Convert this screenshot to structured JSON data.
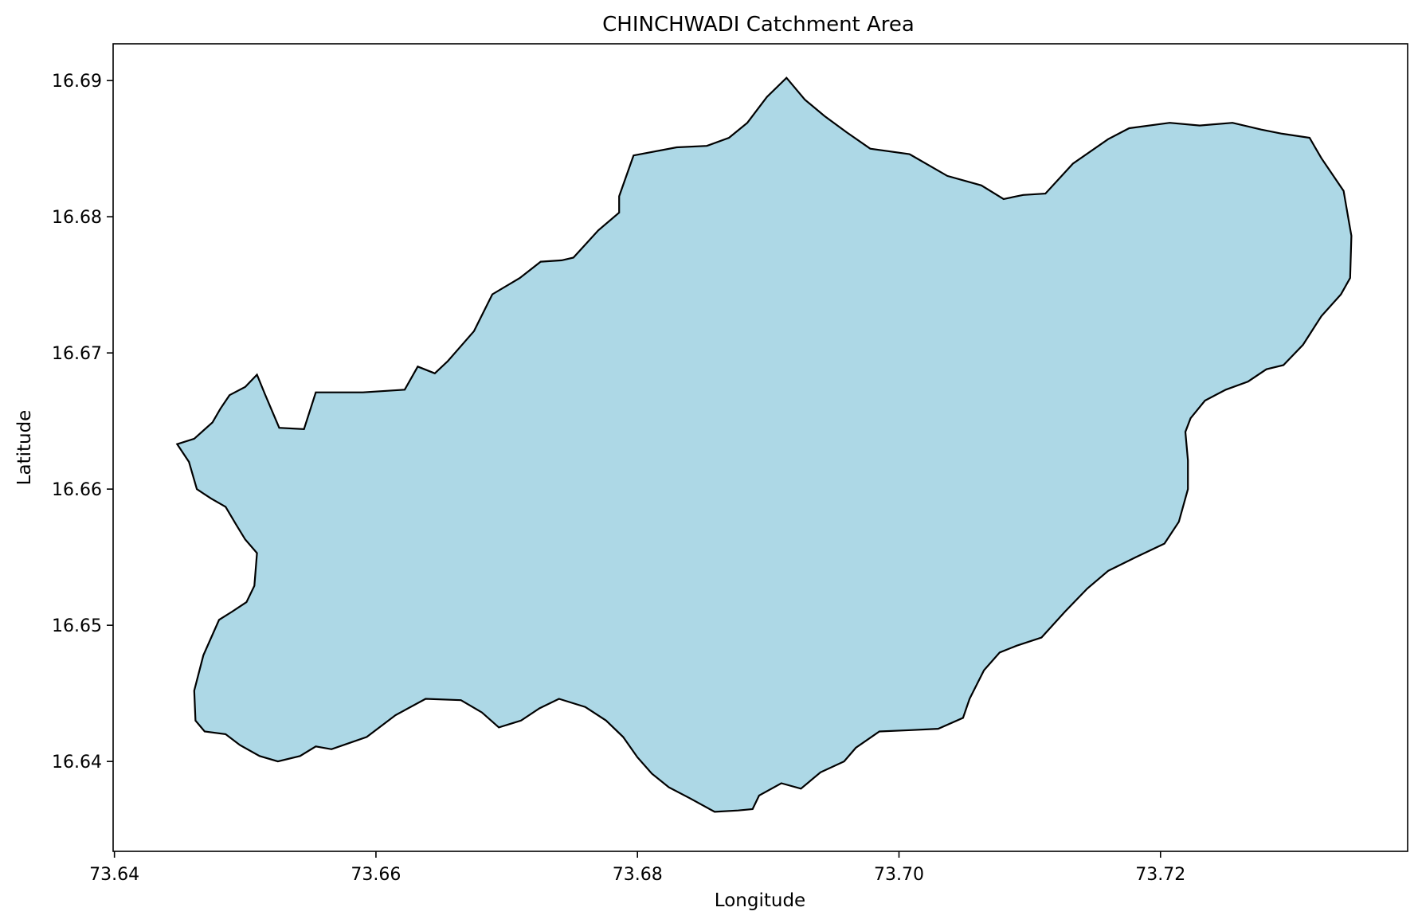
{
  "map_title": "CHINCHWADI Catchment Area",
  "x_axis": {
    "label": "Longitude",
    "ticks": [
      "73.64",
      "73.66",
      "73.68",
      "73.70",
      "73.72"
    ],
    "range": [
      73.6399,
      73.7389
    ]
  },
  "y_axis": {
    "label": "Latitude",
    "ticks": [
      "16.64",
      "16.65",
      "16.66",
      "16.67",
      "16.68",
      "16.69"
    ],
    "range": [
      16.6334,
      16.6927
    ]
  },
  "colors": {
    "catchment_fill": "#add8e6",
    "catchment_edge": "#000000"
  },
  "catchment_boundary": [
    [
      73.6448,
      16.6633
    ],
    [
      73.6461,
      16.6637
    ],
    [
      73.6475,
      16.6649
    ],
    [
      73.6481,
      16.6659
    ],
    [
      73.6488,
      16.6669
    ],
    [
      73.65,
      16.6675
    ],
    [
      73.6509,
      16.6684
    ],
    [
      73.6515,
      16.667
    ],
    [
      73.6526,
      16.6645
    ],
    [
      73.6545,
      16.6644
    ],
    [
      73.6554,
      16.6671
    ],
    [
      73.659,
      16.6671
    ],
    [
      73.6622,
      16.6673
    ],
    [
      73.6632,
      16.669
    ],
    [
      73.6645,
      16.6685
    ],
    [
      73.6655,
      16.6694
    ],
    [
      73.6675,
      16.6716
    ],
    [
      73.6689,
      16.6743
    ],
    [
      73.671,
      16.6755
    ],
    [
      73.6726,
      16.6767
    ],
    [
      73.6742,
      16.6768
    ],
    [
      73.6751,
      16.677
    ],
    [
      73.677,
      16.679
    ],
    [
      73.6786,
      16.6803
    ],
    [
      73.6786,
      16.6815
    ],
    [
      73.6797,
      16.6845
    ],
    [
      73.683,
      16.6851
    ],
    [
      73.6853,
      16.6852
    ],
    [
      73.687,
      16.6858
    ],
    [
      73.6884,
      16.6869
    ],
    [
      73.6899,
      16.6888
    ],
    [
      73.6914,
      16.6902
    ],
    [
      73.6928,
      16.6886
    ],
    [
      73.6943,
      16.6874
    ],
    [
      73.696,
      16.6862
    ],
    [
      73.6978,
      16.685
    ],
    [
      73.7008,
      16.6846
    ],
    [
      73.7037,
      16.683
    ],
    [
      73.7063,
      16.6823
    ],
    [
      73.708,
      16.6813
    ],
    [
      73.7095,
      16.6816
    ],
    [
      73.7112,
      16.6817
    ],
    [
      73.7133,
      16.6839
    ],
    [
      73.716,
      16.6857
    ],
    [
      73.7176,
      16.6865
    ],
    [
      73.7207,
      16.6869
    ],
    [
      73.723,
      16.6867
    ],
    [
      73.7255,
      16.6869
    ],
    [
      73.7277,
      16.6864
    ],
    [
      73.7293,
      16.6861
    ],
    [
      73.7314,
      16.6858
    ],
    [
      73.7323,
      16.6843
    ],
    [
      73.734,
      16.6819
    ],
    [
      73.7344,
      16.6797
    ],
    [
      73.7346,
      16.6786
    ],
    [
      73.7345,
      16.6755
    ],
    [
      73.7338,
      16.6743
    ],
    [
      73.7323,
      16.6727
    ],
    [
      73.7309,
      16.6706
    ],
    [
      73.7294,
      16.6691
    ],
    [
      73.7281,
      16.6688
    ],
    [
      73.7267,
      16.6679
    ],
    [
      73.725,
      16.6673
    ],
    [
      73.7234,
      16.6665
    ],
    [
      73.7223,
      16.6652
    ],
    [
      73.7219,
      16.6642
    ],
    [
      73.7221,
      16.6621
    ],
    [
      73.7221,
      16.66
    ],
    [
      73.7214,
      16.6576
    ],
    [
      73.7203,
      16.656
    ],
    [
      73.7181,
      16.655
    ],
    [
      73.716,
      16.654
    ],
    [
      73.7144,
      16.6527
    ],
    [
      73.7127,
      16.651
    ],
    [
      73.7109,
      16.6491
    ],
    [
      73.709,
      16.6485
    ],
    [
      73.7077,
      16.648
    ],
    [
      73.7065,
      16.6467
    ],
    [
      73.7054,
      16.6446
    ],
    [
      73.7049,
      16.6432
    ],
    [
      73.703,
      16.6424
    ],
    [
      73.7009,
      16.6423
    ],
    [
      73.6985,
      16.6422
    ],
    [
      73.6967,
      16.641
    ],
    [
      73.6958,
      16.64
    ],
    [
      73.694,
      16.6392
    ],
    [
      73.6925,
      16.638
    ],
    [
      73.691,
      16.6384
    ],
    [
      73.6893,
      16.6375
    ],
    [
      73.6888,
      16.6365
    ],
    [
      73.6877,
      16.6364
    ],
    [
      73.6859,
      16.6363
    ],
    [
      73.684,
      16.6373
    ],
    [
      73.6824,
      16.6381
    ],
    [
      73.6811,
      16.6391
    ],
    [
      73.68,
      16.6403
    ],
    [
      73.6789,
      16.6418
    ],
    [
      73.6776,
      16.643
    ],
    [
      73.676,
      16.644
    ],
    [
      73.674,
      16.6446
    ],
    [
      73.6725,
      16.6439
    ],
    [
      73.6711,
      16.643
    ],
    [
      73.6694,
      16.6425
    ],
    [
      73.6681,
      16.6436
    ],
    [
      73.6665,
      16.6445
    ],
    [
      73.6638,
      16.6446
    ],
    [
      73.6615,
      16.6434
    ],
    [
      73.6593,
      16.6418
    ],
    [
      73.6578,
      16.6413
    ],
    [
      73.6566,
      16.6409
    ],
    [
      73.6554,
      16.6411
    ],
    [
      73.6542,
      16.6404
    ],
    [
      73.6525,
      16.64
    ],
    [
      73.6511,
      16.6404
    ],
    [
      73.6496,
      16.6412
    ],
    [
      73.6485,
      16.642
    ],
    [
      73.6469,
      16.6422
    ],
    [
      73.6462,
      16.643
    ],
    [
      73.6461,
      16.6452
    ],
    [
      73.6468,
      16.6478
    ],
    [
      73.648,
      16.6504
    ],
    [
      73.649,
      16.651
    ],
    [
      73.6501,
      16.6517
    ],
    [
      73.6507,
      16.6529
    ],
    [
      73.6509,
      16.6553
    ],
    [
      73.65,
      16.6563
    ],
    [
      73.6493,
      16.6574
    ],
    [
      73.6485,
      16.6587
    ],
    [
      73.6474,
      16.6593
    ],
    [
      73.6463,
      16.66
    ],
    [
      73.6457,
      16.662
    ],
    [
      73.6448,
      16.6633
    ]
  ]
}
